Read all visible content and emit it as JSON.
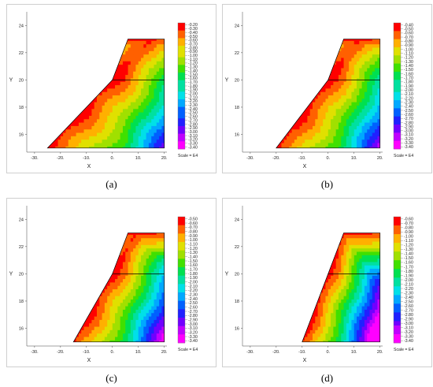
{
  "colors": {
    "scale": [
      "#ff00ff",
      "#c000ff",
      "#7000ff",
      "#2020ff",
      "#0060ff",
      "#00a8ff",
      "#00e0e8",
      "#00e0a0",
      "#00e050",
      "#40e000",
      "#a0e000",
      "#e0e000",
      "#ffb000",
      "#ff6000",
      "#ff0000"
    ],
    "outline": "#000000"
  },
  "chart_data": [
    {
      "type": "heatmap",
      "caption": "(a)",
      "xlabel": "X",
      "ylabel": "Y",
      "xlim": [
        -33,
        21
      ],
      "ylim": [
        14.7,
        25
      ],
      "x_ticks": [
        "-30.",
        "-20.",
        "-10.",
        "0.",
        "10.",
        "20."
      ],
      "x_tick_values": [
        -30,
        -20,
        -10,
        0,
        10,
        20
      ],
      "y_ticks": [
        "16",
        "18",
        "20",
        "22",
        "24"
      ],
      "y_tick_values": [
        16,
        18,
        20,
        22,
        24
      ],
      "domain_polygon": [
        [
          -25,
          15
        ],
        [
          20,
          15
        ],
        [
          20,
          23
        ],
        [
          6,
          23
        ],
        [
          0,
          20
        ]
      ],
      "colorbar_labels": [
        "-0.20",
        "-0.30",
        "-0.40",
        "-0.50",
        "-0.60",
        "-0.70",
        "-0.80",
        "-0.90",
        "-1.00",
        "-1.10",
        "-1.20",
        "-1.30",
        "-1.40",
        "-1.50",
        "-1.60",
        "-1.70",
        "-1.80",
        "-1.90",
        "-2.00",
        "-2.10",
        "-2.20",
        "-2.30",
        "-2.40",
        "-2.50",
        "-2.60",
        "-2.70",
        "-2.80",
        "-2.90",
        "-3.00",
        "-3.10",
        "-3.20",
        "-3.30",
        "-3.40"
      ],
      "scale_note": "Scale = E4"
    },
    {
      "type": "heatmap",
      "caption": "(b)",
      "xlabel": "X",
      "ylabel": "Y",
      "xlim": [
        -33,
        21
      ],
      "ylim": [
        14.7,
        25
      ],
      "x_ticks": [
        "-30.",
        "-20.",
        "-10.",
        "0.",
        "10.",
        "20."
      ],
      "x_tick_values": [
        -30,
        -20,
        -10,
        0,
        10,
        20
      ],
      "y_ticks": [
        "16",
        "18",
        "20",
        "22",
        "24"
      ],
      "y_tick_values": [
        16,
        18,
        20,
        22,
        24
      ],
      "domain_polygon": [
        [
          -20,
          15
        ],
        [
          20,
          15
        ],
        [
          20,
          23
        ],
        [
          6,
          23
        ],
        [
          0,
          20
        ]
      ],
      "colorbar_labels": [
        "-0.40",
        "-0.50",
        "-0.60",
        "-0.70",
        "-0.80",
        "-0.90",
        "-1.00",
        "-1.10",
        "-1.20",
        "-1.30",
        "-1.40",
        "-1.50",
        "-1.60",
        "-1.70",
        "-1.80",
        "-1.90",
        "-2.00",
        "-2.10",
        "-2.20",
        "-2.30",
        "-2.40",
        "-2.50",
        "-2.60",
        "-2.70",
        "-2.80",
        "-2.90",
        "-3.00",
        "-3.10",
        "-3.20",
        "-3.30",
        "-3.40"
      ],
      "scale_note": "Scale = E4"
    },
    {
      "type": "heatmap",
      "caption": "(c)",
      "xlabel": "X",
      "ylabel": "Y",
      "xlim": [
        -33,
        21
      ],
      "ylim": [
        14.7,
        25
      ],
      "x_ticks": [
        "-30.",
        "-20.",
        "-10.",
        "0.",
        "10.",
        "20."
      ],
      "x_tick_values": [
        -30,
        -20,
        -10,
        0,
        10,
        20
      ],
      "y_ticks": [
        "16",
        "18",
        "20",
        "22",
        "24"
      ],
      "y_tick_values": [
        16,
        18,
        20,
        22,
        24
      ],
      "domain_polygon": [
        [
          -15,
          15
        ],
        [
          20,
          15
        ],
        [
          20,
          23
        ],
        [
          6,
          23
        ],
        [
          0,
          20
        ]
      ],
      "colorbar_labels": [
        "-0.50",
        "-0.60",
        "-0.70",
        "-0.80",
        "-0.90",
        "-1.00",
        "-1.10",
        "-1.20",
        "-1.30",
        "-1.40",
        "-1.50",
        "-1.60",
        "-1.70",
        "-1.80",
        "-1.90",
        "-2.00",
        "-2.10",
        "-2.20",
        "-2.30",
        "-2.40",
        "-2.50",
        "-2.60",
        "-2.70",
        "-2.80",
        "-2.90",
        "-3.00",
        "-3.10",
        "-3.20",
        "-3.30",
        "-3.40"
      ],
      "scale_note": "Scale = E4"
    },
    {
      "type": "heatmap",
      "caption": "(d)",
      "xlabel": "X",
      "ylabel": "Y",
      "xlim": [
        -33,
        21
      ],
      "ylim": [
        14.7,
        25
      ],
      "x_ticks": [
        "-30.",
        "-20.",
        "-10.",
        "0.",
        "10.",
        "20."
      ],
      "x_tick_values": [
        -30,
        -20,
        -10,
        0,
        10,
        20
      ],
      "y_ticks": [
        "16",
        "18",
        "20",
        "22",
        "24"
      ],
      "y_tick_values": [
        16,
        18,
        20,
        22,
        24
      ],
      "domain_polygon": [
        [
          -10,
          15
        ],
        [
          20,
          15
        ],
        [
          20,
          23
        ],
        [
          6,
          23
        ],
        [
          0,
          20
        ]
      ],
      "colorbar_labels": [
        "-0.60",
        "-0.70",
        "-0.80",
        "-0.90",
        "-1.00",
        "-1.10",
        "-1.20",
        "-1.30",
        "-1.40",
        "-1.50",
        "-1.60",
        "-1.70",
        "-1.80",
        "-1.90",
        "-2.00",
        "-2.10",
        "-2.20",
        "-2.30",
        "-2.40",
        "-2.50",
        "-2.60",
        "-2.70",
        "-2.80",
        "-2.90",
        "-3.00",
        "-3.10",
        "-3.20",
        "-3.30",
        "-3.40"
      ],
      "scale_note": "Scale = E4"
    }
  ]
}
